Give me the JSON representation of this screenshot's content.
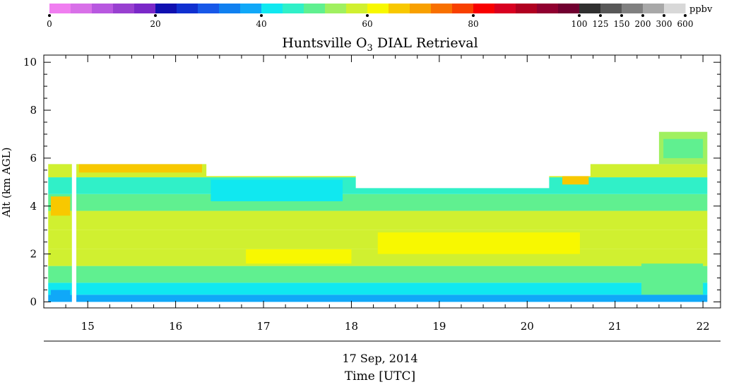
{
  "chart_data": {
    "type": "heatmap",
    "title_prefix": "Huntsville O",
    "title_sub": "3",
    "title_suffix": " DIAL Retrieval",
    "xlabel": "Time [UTC]",
    "date_label": "17 Sep, 2014",
    "ylabel": "Alt (km AGL)",
    "xlim": [
      14.5,
      22.2
    ],
    "ylim": [
      -0.25,
      10.3
    ],
    "x_ticks": [
      15,
      16,
      17,
      18,
      19,
      20,
      21,
      22
    ],
    "y_ticks": [
      0,
      2,
      4,
      6,
      8,
      10
    ],
    "colorbar": {
      "unit": "ppbv",
      "ticks": [
        "0",
        "20",
        "40",
        "60",
        "80",
        "100",
        "125",
        "150",
        "200",
        "300",
        "600"
      ],
      "colors": [
        "#f07ef0",
        "#d870e8",
        "#b858e0",
        "#9840d0",
        "#7a28c8",
        "#1010b0",
        "#1030d0",
        "#1858e8",
        "#1080f0",
        "#10a8f8",
        "#10e8f0",
        "#30f0c8",
        "#60f090",
        "#a0f060",
        "#d0f030",
        "#f8f800",
        "#f8c800",
        "#f8a000",
        "#f87000",
        "#f84000",
        "#f80000",
        "#d80020",
        "#b00020",
        "#900030",
        "#700030",
        "#303030",
        "#585858",
        "#808080",
        "#a8a8a8",
        "#d8d8d8"
      ]
    },
    "columns": [
      {
        "x0": 14.55,
        "x1": 14.82,
        "top": 5.75
      },
      {
        "x0": 14.87,
        "x1": 16.35,
        "top": 5.75
      },
      {
        "x0": 16.35,
        "x1": 18.05,
        "top": 5.25
      },
      {
        "x0": 18.05,
        "x1": 20.25,
        "top": 4.75
      },
      {
        "x0": 20.25,
        "x1": 20.72,
        "top": 5.25
      },
      {
        "x0": 20.72,
        "x1": 21.5,
        "top": 5.75
      },
      {
        "x0": 21.5,
        "x1": 22.05,
        "top": 7.1
      }
    ],
    "layers": [
      {
        "y0": 0.0,
        "y1": 0.3,
        "ppbv": 36
      },
      {
        "y0": 0.3,
        "y1": 0.8,
        "ppbv": 40
      },
      {
        "y0": 0.8,
        "y1": 1.5,
        "ppbv": 50
      },
      {
        "y0": 1.5,
        "y1": 2.2,
        "ppbv": 56
      },
      {
        "y0": 2.2,
        "y1": 3.0,
        "ppbv": 58
      },
      {
        "y0": 3.0,
        "y1": 3.8,
        "ppbv": 57
      },
      {
        "y0": 3.8,
        "y1": 4.5,
        "ppbv": 50
      },
      {
        "y0": 4.5,
        "y1": 5.2,
        "ppbv": 45
      },
      {
        "y0": 5.2,
        "y1": 5.75,
        "ppbv": 58
      },
      {
        "y0": 5.75,
        "y1": 7.1,
        "ppbv": 52
      }
    ],
    "features": [
      {
        "x0": 14.58,
        "x1": 14.8,
        "y0": 3.6,
        "y1": 4.4,
        "ppbv": 66
      },
      {
        "x0": 14.9,
        "x1": 16.3,
        "y0": 5.4,
        "y1": 5.75,
        "ppbv": 64
      },
      {
        "x0": 16.4,
        "x1": 17.9,
        "y0": 4.2,
        "y1": 5.1,
        "ppbv": 40
      },
      {
        "x0": 16.8,
        "x1": 18.0,
        "y0": 1.6,
        "y1": 2.2,
        "ppbv": 60
      },
      {
        "x0": 18.3,
        "x1": 20.6,
        "y0": 2.0,
        "y1": 2.9,
        "ppbv": 60
      },
      {
        "x0": 20.4,
        "x1": 20.7,
        "y0": 4.9,
        "y1": 5.25,
        "ppbv": 64
      },
      {
        "x0": 21.55,
        "x1": 22.0,
        "y0": 6.0,
        "y1": 6.8,
        "ppbv": 50
      },
      {
        "x0": 21.3,
        "x1": 22.0,
        "y0": 0.3,
        "y1": 1.6,
        "ppbv": 48
      },
      {
        "x0": 14.58,
        "x1": 14.8,
        "y0": 0.0,
        "y1": 0.5,
        "ppbv": 36
      }
    ]
  }
}
